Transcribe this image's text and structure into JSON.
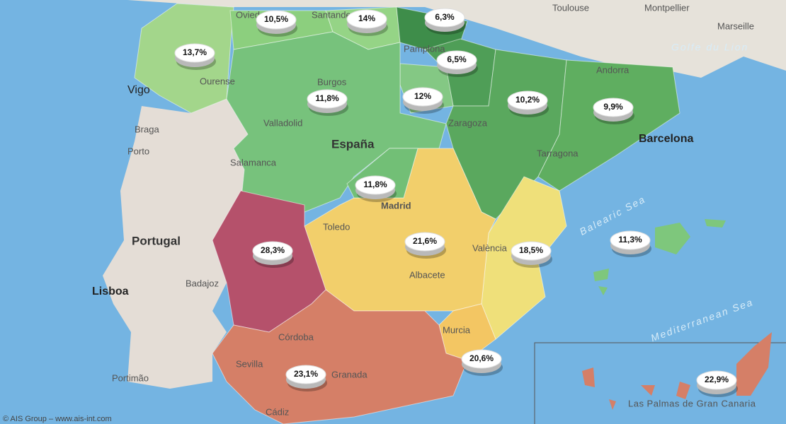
{
  "badges": [
    "13,7%",
    "10,5%",
    "14%",
    "6,3%",
    "6,5%",
    "11,8%",
    "12%",
    "10,2%",
    "9,9%",
    "11,8%",
    "28,3%",
    "21,6%",
    "18,5%",
    "11,3%",
    "20,6%",
    "23,1%",
    "22,9%"
  ],
  "places": [
    "Toulouse",
    "Montpellier",
    "Marseille",
    "Vigo",
    "Ourense",
    "Braga",
    "Porto",
    "Burgos",
    "Valladolid",
    "Salamanca",
    "Zaragoza",
    "Tarragona",
    "Barcelona",
    "Andorra",
    "Toledo",
    "Albacete",
    "València",
    "Badajoz",
    "Lisboa",
    "Córdoba",
    "Sevilla",
    "Granada",
    "Murcia",
    "Portimão",
    "Cádiz",
    "Las Palmas de Gran Canaria",
    "Madrid",
    "Oviedo",
    "Santander",
    "Pamplona"
  ],
  "countries": [
    "Portugal",
    "España"
  ],
  "seas": [
    "Golfe du Lion",
    "Balearic Sea",
    "Mediterranean Sea"
  ],
  "attribution": "© AIS Group – www.ais-int.com"
}
